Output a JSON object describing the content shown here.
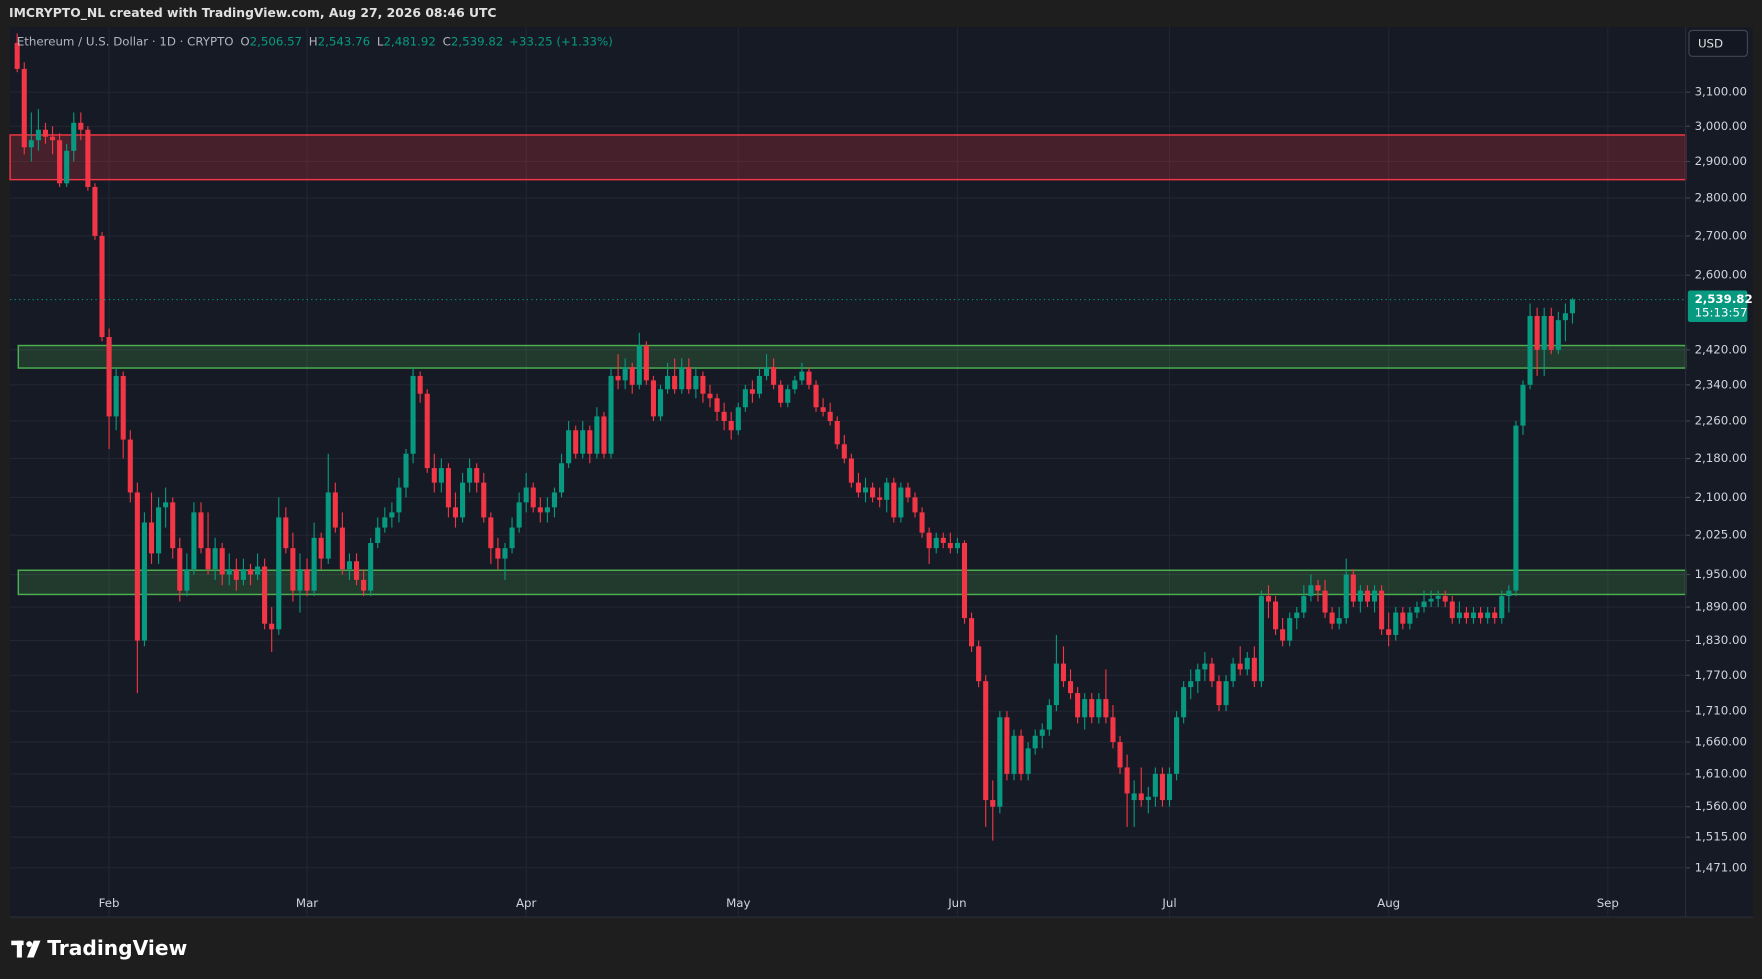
{
  "header": {
    "attribution": "IMCRYPTO_NL created with TradingView.com, Aug 27, 2026 08:46 UTC",
    "symbol": "Ethereum / U.S. Dollar · 1D · CRYPTO",
    "legend": [
      {
        "label": "O",
        "value": "2,506.57"
      },
      {
        "label": "H",
        "value": "2,543.76"
      },
      {
        "label": "L",
        "value": "2,481.92"
      },
      {
        "label": "C",
        "value": "2,539.82"
      }
    ],
    "change": "+33.25 (+1.33%)",
    "currency": "USD"
  },
  "footer": {
    "brand": "TradingView"
  },
  "chart_data": {
    "type": "candlestick",
    "log_scale": true,
    "grid": true,
    "up_color": "#089981",
    "down_color": "#f23645",
    "xlim": [
      -1,
      236
    ],
    "ylim": [
      1403,
      3300
    ],
    "xticks": [
      {
        "value": 13,
        "label": "Feb"
      },
      {
        "value": 41,
        "label": "Mar"
      },
      {
        "value": 72,
        "label": "Apr"
      },
      {
        "value": 102,
        "label": "May"
      },
      {
        "value": 133,
        "label": "Jun"
      },
      {
        "value": 163,
        "label": "Jul"
      },
      {
        "value": 194,
        "label": "Aug"
      },
      {
        "value": 225,
        "label": "Sep"
      }
    ],
    "yticks": [
      {
        "value": 3100,
        "label": "3,100.00"
      },
      {
        "value": 3000,
        "label": "3,000.00"
      },
      {
        "value": 2900,
        "label": "2,900.00"
      },
      {
        "value": 2800,
        "label": "2,800.00"
      },
      {
        "value": 2700,
        "label": "2,700.00"
      },
      {
        "value": 2600,
        "label": "2,600.00"
      },
      {
        "value": 2420,
        "label": "2,420.00"
      },
      {
        "value": 2340,
        "label": "2,340.00"
      },
      {
        "value": 2260,
        "label": "2,260.00"
      },
      {
        "value": 2180,
        "label": "2,180.00"
      },
      {
        "value": 2100,
        "label": "2,100.00"
      },
      {
        "value": 2025,
        "label": "2,025.00"
      },
      {
        "value": 1950,
        "label": "1,950.00"
      },
      {
        "value": 1890,
        "label": "1,890.00"
      },
      {
        "value": 1830,
        "label": "1,830.00"
      },
      {
        "value": 1770,
        "label": "1,770.00"
      },
      {
        "value": 1710,
        "label": "1,710.00"
      },
      {
        "value": 1660,
        "label": "1,660.00"
      },
      {
        "value": 1610,
        "label": "1,610.00"
      },
      {
        "value": 1560,
        "label": "1,560.00"
      },
      {
        "value": 1515,
        "label": "1,515.00"
      },
      {
        "value": 1471,
        "label": "1,471.00"
      }
    ],
    "last_price": {
      "value": 2539.82,
      "label": "2,539.82",
      "countdown": "15:13:57"
    },
    "zones": [
      {
        "low": 2850,
        "high": 2975,
        "color": "#f23645"
      },
      {
        "low": 2378,
        "high": 2430,
        "color": "#4caf50"
      },
      {
        "low": 1913,
        "high": 1958,
        "color": "#4caf50"
      }
    ],
    "ohlc": [
      [
        3250,
        3280,
        3160,
        3170
      ],
      [
        3170,
        3190,
        2920,
        2940
      ],
      [
        2940,
        3040,
        2900,
        2960
      ],
      [
        2960,
        3050,
        2930,
        2990
      ],
      [
        2990,
        3010,
        2950,
        2970
      ],
      [
        2970,
        3000,
        2920,
        2960
      ],
      [
        2960,
        2980,
        2830,
        2840
      ],
      [
        2840,
        2950,
        2830,
        2930
      ],
      [
        2930,
        3040,
        2900,
        3010
      ],
      [
        3010,
        3040,
        2960,
        2990
      ],
      [
        2990,
        3000,
        2820,
        2830
      ],
      [
        2830,
        2840,
        2690,
        2700
      ],
      [
        2700,
        2710,
        2440,
        2450
      ],
      [
        2450,
        2470,
        2200,
        2270
      ],
      [
        2270,
        2380,
        2240,
        2360
      ],
      [
        2360,
        2370,
        2180,
        2220
      ],
      [
        2220,
        2240,
        2090,
        2110
      ],
      [
        2110,
        2130,
        1740,
        1830
      ],
      [
        1830,
        2070,
        1820,
        2050
      ],
      [
        2050,
        2110,
        1970,
        1990
      ],
      [
        1990,
        2100,
        1970,
        2080
      ],
      [
        2080,
        2120,
        2040,
        2090
      ],
      [
        2090,
        2100,
        1980,
        2000
      ],
      [
        2000,
        2020,
        1900,
        1920
      ],
      [
        1920,
        1990,
        1910,
        1960
      ],
      [
        1960,
        2090,
        1950,
        2070
      ],
      [
        2070,
        2090,
        1990,
        2000
      ],
      [
        2000,
        2070,
        1950,
        1960
      ],
      [
        1960,
        2020,
        1940,
        2000
      ],
      [
        2000,
        2010,
        1930,
        1950
      ],
      [
        1950,
        1990,
        1930,
        1960
      ],
      [
        1960,
        1980,
        1920,
        1940
      ],
      [
        1940,
        1980,
        1930,
        1960
      ],
      [
        1960,
        1970,
        1930,
        1950
      ],
      [
        1950,
        1990,
        1940,
        1965
      ],
      [
        1965,
        1980,
        1850,
        1860
      ],
      [
        1860,
        1890,
        1810,
        1850
      ],
      [
        1850,
        2100,
        1840,
        2060
      ],
      [
        2060,
        2080,
        1990,
        2000
      ],
      [
        2000,
        2030,
        1900,
        1920
      ],
      [
        1920,
        1990,
        1880,
        1960
      ],
      [
        1960,
        1980,
        1910,
        1920
      ],
      [
        1920,
        2050,
        1910,
        2020
      ],
      [
        2020,
        2030,
        1960,
        1980
      ],
      [
        1980,
        2190,
        1970,
        2110
      ],
      [
        2110,
        2130,
        2030,
        2040
      ],
      [
        2040,
        2070,
        1950,
        1960
      ],
      [
        1960,
        1990,
        1940,
        1975
      ],
      [
        1975,
        1990,
        1930,
        1940
      ],
      [
        1940,
        1960,
        1910,
        1920
      ],
      [
        1920,
        2020,
        1910,
        2010
      ],
      [
        2010,
        2060,
        2000,
        2040
      ],
      [
        2040,
        2080,
        2030,
        2060
      ],
      [
        2060,
        2090,
        2040,
        2070
      ],
      [
        2070,
        2140,
        2050,
        2120
      ],
      [
        2120,
        2200,
        2100,
        2190
      ],
      [
        2190,
        2380,
        2170,
        2360
      ],
      [
        2360,
        2370,
        2300,
        2320
      ],
      [
        2320,
        2330,
        2150,
        2160
      ],
      [
        2160,
        2190,
        2110,
        2130
      ],
      [
        2130,
        2180,
        2110,
        2160
      ],
      [
        2160,
        2170,
        2060,
        2080
      ],
      [
        2080,
        2110,
        2040,
        2060
      ],
      [
        2060,
        2150,
        2050,
        2130
      ],
      [
        2130,
        2180,
        2110,
        2160
      ],
      [
        2160,
        2170,
        2110,
        2130
      ],
      [
        2130,
        2150,
        2050,
        2060
      ],
      [
        2060,
        2070,
        1970,
        2000
      ],
      [
        2000,
        2020,
        1960,
        1980
      ],
      [
        1980,
        2010,
        1940,
        2000
      ],
      [
        2000,
        2060,
        1990,
        2040
      ],
      [
        2040,
        2110,
        2030,
        2090
      ],
      [
        2090,
        2150,
        2070,
        2120
      ],
      [
        2120,
        2130,
        2070,
        2080
      ],
      [
        2080,
        2100,
        2050,
        2070
      ],
      [
        2070,
        2100,
        2050,
        2080
      ],
      [
        2080,
        2120,
        2060,
        2110
      ],
      [
        2110,
        2190,
        2100,
        2170
      ],
      [
        2170,
        2260,
        2160,
        2240
      ],
      [
        2240,
        2250,
        2180,
        2190
      ],
      [
        2190,
        2260,
        2180,
        2240
      ],
      [
        2240,
        2250,
        2170,
        2190
      ],
      [
        2190,
        2290,
        2180,
        2270
      ],
      [
        2270,
        2280,
        2180,
        2190
      ],
      [
        2190,
        2380,
        2180,
        2360
      ],
      [
        2360,
        2410,
        2330,
        2350
      ],
      [
        2350,
        2400,
        2330,
        2380
      ],
      [
        2380,
        2390,
        2320,
        2340
      ],
      [
        2340,
        2460,
        2330,
        2430
      ],
      [
        2430,
        2440,
        2340,
        2350
      ],
      [
        2350,
        2360,
        2260,
        2270
      ],
      [
        2270,
        2340,
        2260,
        2330
      ],
      [
        2330,
        2390,
        2320,
        2360
      ],
      [
        2360,
        2400,
        2320,
        2330
      ],
      [
        2330,
        2400,
        2320,
        2380
      ],
      [
        2380,
        2400,
        2320,
        2330
      ],
      [
        2330,
        2380,
        2310,
        2360
      ],
      [
        2360,
        2370,
        2300,
        2320
      ],
      [
        2320,
        2340,
        2290,
        2310
      ],
      [
        2310,
        2320,
        2260,
        2280
      ],
      [
        2280,
        2300,
        2240,
        2260
      ],
      [
        2260,
        2280,
        2220,
        2240
      ],
      [
        2240,
        2300,
        2230,
        2290
      ],
      [
        2290,
        2340,
        2280,
        2330
      ],
      [
        2330,
        2350,
        2300,
        2320
      ],
      [
        2320,
        2380,
        2310,
        2360
      ],
      [
        2360,
        2410,
        2350,
        2380
      ],
      [
        2380,
        2400,
        2330,
        2340
      ],
      [
        2340,
        2350,
        2290,
        2300
      ],
      [
        2300,
        2340,
        2290,
        2330
      ],
      [
        2330,
        2360,
        2320,
        2350
      ],
      [
        2350,
        2390,
        2340,
        2370
      ],
      [
        2370,
        2380,
        2330,
        2340
      ],
      [
        2340,
        2350,
        2280,
        2290
      ],
      [
        2290,
        2310,
        2270,
        2280
      ],
      [
        2280,
        2300,
        2250,
        2260
      ],
      [
        2260,
        2270,
        2200,
        2210
      ],
      [
        2210,
        2230,
        2170,
        2180
      ],
      [
        2180,
        2190,
        2120,
        2130
      ],
      [
        2130,
        2150,
        2100,
        2110
      ],
      [
        2110,
        2140,
        2090,
        2120
      ],
      [
        2120,
        2130,
        2090,
        2100
      ],
      [
        2100,
        2120,
        2080,
        2095
      ],
      [
        2095,
        2140,
        2070,
        2130
      ],
      [
        2130,
        2140,
        2050,
        2060
      ],
      [
        2060,
        2130,
        2050,
        2120
      ],
      [
        2120,
        2130,
        2090,
        2100
      ],
      [
        2100,
        2110,
        2060,
        2070
      ],
      [
        2070,
        2080,
        2020,
        2030
      ],
      [
        2030,
        2040,
        1970,
        2000
      ],
      [
        2000,
        2030,
        1990,
        2020
      ],
      [
        2020,
        2030,
        2000,
        2010
      ],
      [
        2010,
        2030,
        1990,
        2000
      ],
      [
        2000,
        2020,
        1990,
        2010
      ],
      [
        2010,
        2015,
        1860,
        1870
      ],
      [
        1870,
        1880,
        1810,
        1820
      ],
      [
        1820,
        1830,
        1750,
        1760
      ],
      [
        1760,
        1770,
        1530,
        1570
      ],
      [
        1570,
        1600,
        1510,
        1560
      ],
      [
        1560,
        1710,
        1550,
        1700
      ],
      [
        1700,
        1710,
        1600,
        1610
      ],
      [
        1610,
        1680,
        1600,
        1670
      ],
      [
        1670,
        1680,
        1600,
        1610
      ],
      [
        1610,
        1660,
        1600,
        1650
      ],
      [
        1650,
        1680,
        1640,
        1670
      ],
      [
        1670,
        1690,
        1650,
        1680
      ],
      [
        1680,
        1730,
        1670,
        1720
      ],
      [
        1720,
        1840,
        1710,
        1790
      ],
      [
        1790,
        1820,
        1750,
        1760
      ],
      [
        1760,
        1780,
        1730,
        1740
      ],
      [
        1740,
        1750,
        1690,
        1700
      ],
      [
        1700,
        1740,
        1680,
        1730
      ],
      [
        1730,
        1740,
        1690,
        1700
      ],
      [
        1700,
        1740,
        1690,
        1730
      ],
      [
        1730,
        1780,
        1690,
        1700
      ],
      [
        1700,
        1720,
        1650,
        1660
      ],
      [
        1660,
        1670,
        1610,
        1620
      ],
      [
        1620,
        1640,
        1530,
        1580
      ],
      [
        1570,
        1600,
        1530,
        1580
      ],
      [
        1580,
        1620,
        1560,
        1570
      ],
      [
        1570,
        1590,
        1550,
        1575
      ],
      [
        1575,
        1620,
        1560,
        1610
      ],
      [
        1610,
        1620,
        1560,
        1570
      ],
      [
        1570,
        1620,
        1560,
        1610
      ],
      [
        1610,
        1710,
        1600,
        1700
      ],
      [
        1700,
        1760,
        1690,
        1750
      ],
      [
        1750,
        1780,
        1730,
        1760
      ],
      [
        1760,
        1790,
        1740,
        1780
      ],
      [
        1780,
        1810,
        1760,
        1790
      ],
      [
        1790,
        1800,
        1750,
        1760
      ],
      [
        1760,
        1770,
        1710,
        1720
      ],
      [
        1720,
        1770,
        1710,
        1760
      ],
      [
        1760,
        1800,
        1750,
        1790
      ],
      [
        1790,
        1820,
        1770,
        1780
      ],
      [
        1780,
        1810,
        1770,
        1800
      ],
      [
        1800,
        1820,
        1750,
        1760
      ],
      [
        1760,
        1920,
        1750,
        1910
      ],
      [
        1910,
        1930,
        1870,
        1900
      ],
      [
        1900,
        1910,
        1840,
        1850
      ],
      [
        1850,
        1870,
        1820,
        1830
      ],
      [
        1830,
        1880,
        1820,
        1870
      ],
      [
        1870,
        1890,
        1850,
        1880
      ],
      [
        1880,
        1930,
        1870,
        1910
      ],
      [
        1910,
        1950,
        1900,
        1930
      ],
      [
        1930,
        1940,
        1900,
        1920
      ],
      [
        1920,
        1940,
        1870,
        1880
      ],
      [
        1880,
        1890,
        1850,
        1860
      ],
      [
        1860,
        1890,
        1850,
        1870
      ],
      [
        1870,
        1980,
        1860,
        1950
      ],
      [
        1950,
        1960,
        1890,
        1900
      ],
      [
        1900,
        1930,
        1880,
        1920
      ],
      [
        1920,
        1930,
        1890,
        1900
      ],
      [
        1900,
        1930,
        1880,
        1920
      ],
      [
        1920,
        1930,
        1840,
        1850
      ],
      [
        1850,
        1880,
        1820,
        1840
      ],
      [
        1840,
        1890,
        1830,
        1880
      ],
      [
        1880,
        1890,
        1850,
        1860
      ],
      [
        1860,
        1890,
        1850,
        1880
      ],
      [
        1880,
        1900,
        1870,
        1890
      ],
      [
        1890,
        1920,
        1880,
        1900
      ],
      [
        1900,
        1920,
        1890,
        1905
      ],
      [
        1905,
        1920,
        1890,
        1910
      ],
      [
        1910,
        1920,
        1890,
        1900
      ],
      [
        1900,
        1910,
        1860,
        1870
      ],
      [
        1870,
        1900,
        1860,
        1880
      ],
      [
        1880,
        1890,
        1860,
        1870
      ],
      [
        1870,
        1890,
        1860,
        1880
      ],
      [
        1880,
        1890,
        1860,
        1870
      ],
      [
        1870,
        1890,
        1860,
        1880
      ],
      [
        1880,
        1890,
        1860,
        1870
      ],
      [
        1870,
        1920,
        1860,
        1910
      ],
      [
        1910,
        1930,
        1880,
        1920
      ],
      [
        1920,
        2260,
        1910,
        2250
      ],
      [
        2250,
        2350,
        2230,
        2340
      ],
      [
        2340,
        2530,
        2330,
        2500
      ],
      [
        2500,
        2520,
        2360,
        2420
      ],
      [
        2420,
        2520,
        2360,
        2500
      ],
      [
        2500,
        2520,
        2410,
        2420
      ],
      [
        2420,
        2510,
        2410,
        2490
      ],
      [
        2490,
        2530,
        2440,
        2506.57
      ],
      [
        2506.57,
        2543.76,
        2481.92,
        2539.82
      ]
    ]
  }
}
